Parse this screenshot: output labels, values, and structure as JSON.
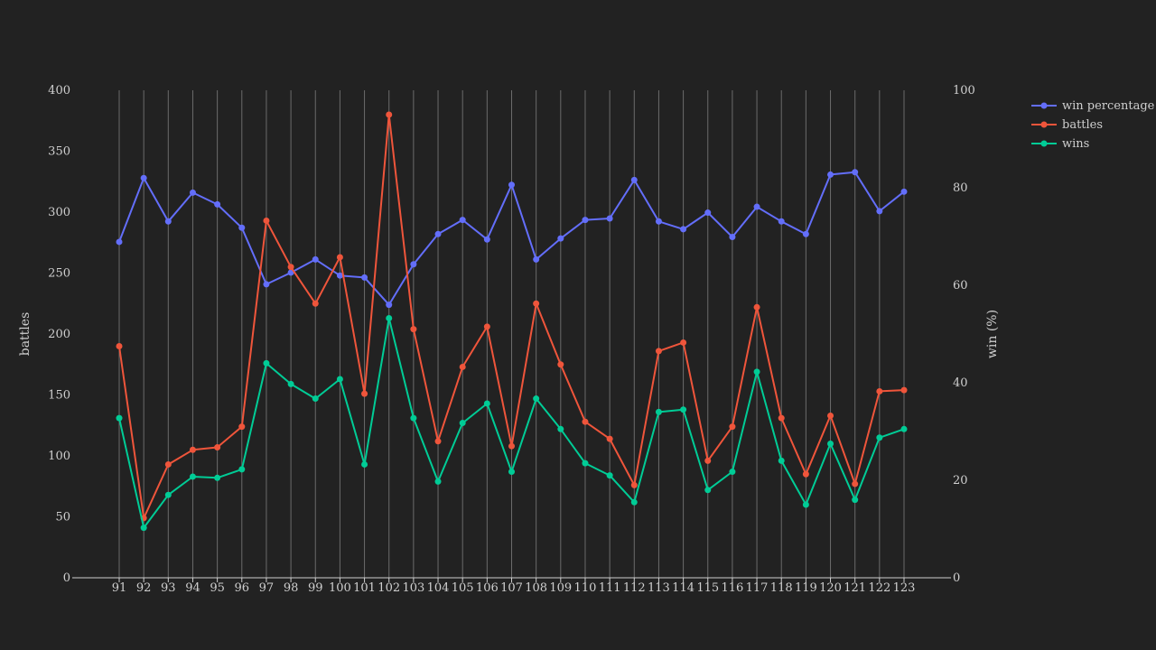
{
  "chart_data": {
    "type": "line",
    "x": [
      91,
      92,
      93,
      94,
      95,
      96,
      97,
      98,
      99,
      100,
      101,
      102,
      103,
      104,
      105,
      106,
      107,
      108,
      109,
      110,
      111,
      112,
      113,
      114,
      115,
      116,
      117,
      118,
      119,
      120,
      121,
      122,
      123
    ],
    "xlabel": "",
    "y_left": {
      "label": "battles",
      "range": [
        0,
        400
      ],
      "ticks": [
        0,
        50,
        100,
        150,
        200,
        250,
        300,
        350,
        400
      ]
    },
    "y_right": {
      "label": "win (%)",
      "range": [
        0,
        100
      ],
      "ticks": [
        0,
        20,
        40,
        60,
        80,
        100
      ]
    },
    "grid": "vertical",
    "legend_position": "top-right",
    "series": [
      {
        "name": "win percentage",
        "axis": "right",
        "color": "#636efa",
        "values": [
          68.9,
          82.0,
          73.1,
          79.0,
          76.6,
          71.8,
          60.2,
          62.6,
          65.3,
          62.0,
          61.6,
          56.0,
          64.3,
          70.5,
          73.4,
          69.4,
          80.6,
          65.3,
          69.6,
          73.4,
          73.7,
          81.6,
          73.1,
          71.5,
          74.9,
          69.9,
          76.1,
          73.1,
          70.5,
          82.7,
          83.2,
          75.2,
          79.2
        ]
      },
      {
        "name": "battles",
        "axis": "left",
        "color": "#ef553b",
        "values": [
          190,
          49,
          93,
          105,
          107,
          124,
          293,
          255,
          225,
          263,
          151,
          380,
          204,
          112,
          173,
          206,
          108,
          225,
          175,
          128,
          114,
          76,
          186,
          193,
          96,
          124,
          222,
          131,
          85,
          133,
          77,
          153,
          154
        ]
      },
      {
        "name": "wins",
        "axis": "left",
        "color": "#00cc96",
        "values": [
          131,
          41,
          68,
          83,
          82,
          89,
          176,
          159,
          147,
          163,
          93,
          213,
          131,
          79,
          127,
          143,
          87,
          147,
          122,
          94,
          84,
          62,
          136,
          138,
          72,
          87,
          169,
          96,
          60,
          110,
          64,
          115,
          122
        ]
      }
    ]
  }
}
